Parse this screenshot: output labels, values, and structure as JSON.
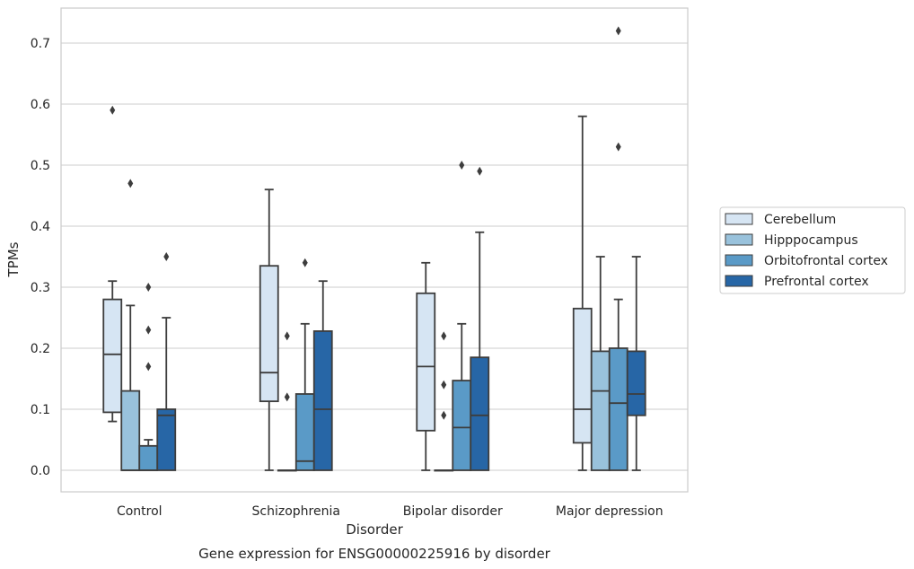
{
  "chart_data": {
    "type": "boxplot",
    "title": "",
    "caption": "Gene expression for ENSG00000225916 by disorder",
    "xlabel": "Disorder",
    "ylabel": "TPMs",
    "ylim": [
      -0.035,
      0.76
    ],
    "yticks": [
      0.0,
      0.1,
      0.2,
      0.3,
      0.4,
      0.5,
      0.6,
      0.7
    ],
    "ytick_labels": [
      "0.0",
      "0.1",
      "0.2",
      "0.3",
      "0.4",
      "0.5",
      "0.6",
      "0.7"
    ],
    "categories": [
      "Control",
      "Schizophrenia",
      "Bipolar disorder",
      "Major depression"
    ],
    "grid": "horizontal",
    "legend_position": "right",
    "series": [
      {
        "name": "Cerebellum",
        "color": "#d6e5f3",
        "boxes": [
          {
            "whislo": 0.08,
            "q1": 0.095,
            "med": 0.19,
            "q3": 0.28,
            "whishi": 0.31,
            "fliers": [
              0.59
            ]
          },
          {
            "whislo": 0.0,
            "q1": 0.113,
            "med": 0.16,
            "q3": 0.335,
            "whishi": 0.46,
            "fliers": []
          },
          {
            "whislo": 0.0,
            "q1": 0.065,
            "med": 0.17,
            "q3": 0.29,
            "whishi": 0.34,
            "fliers": []
          },
          {
            "whislo": 0.0,
            "q1": 0.045,
            "med": 0.1,
            "q3": 0.265,
            "whishi": 0.58,
            "fliers": []
          }
        ]
      },
      {
        "name": "Hipppocampus",
        "color": "#99c2dc",
        "boxes": [
          {
            "whislo": 0.0,
            "q1": 0.0,
            "med": 0.0,
            "q3": 0.13,
            "whishi": 0.27,
            "fliers": [
              0.47
            ]
          },
          {
            "whislo": 0.0,
            "q1": 0.0,
            "med": 0.0,
            "q3": 0.0,
            "whishi": 0.0,
            "fliers": [
              0.12,
              0.22
            ]
          },
          {
            "whislo": 0.0,
            "q1": 0.0,
            "med": 0.0,
            "q3": 0.0,
            "whishi": 0.0,
            "fliers": [
              0.09,
              0.14,
              0.22
            ]
          },
          {
            "whislo": 0.0,
            "q1": 0.0,
            "med": 0.13,
            "q3": 0.195,
            "whishi": 0.35,
            "fliers": []
          }
        ]
      },
      {
        "name": "Orbitofrontal cortex",
        "color": "#5a9ac7",
        "boxes": [
          {
            "whislo": 0.0,
            "q1": 0.0,
            "med": 0.0,
            "q3": 0.04,
            "whishi": 0.05,
            "fliers": [
              0.17,
              0.23,
              0.3
            ]
          },
          {
            "whislo": 0.0,
            "q1": 0.0,
            "med": 0.015,
            "q3": 0.125,
            "whishi": 0.24,
            "fliers": [
              0.34
            ]
          },
          {
            "whislo": 0.0,
            "q1": 0.0,
            "med": 0.07,
            "q3": 0.147,
            "whishi": 0.24,
            "fliers": [
              0.5
            ]
          },
          {
            "whislo": 0.0,
            "q1": 0.0,
            "med": 0.11,
            "q3": 0.2,
            "whishi": 0.28,
            "fliers": [
              0.53,
              0.72
            ]
          }
        ]
      },
      {
        "name": "Prefrontal cortex",
        "color": "#2766a6",
        "boxes": [
          {
            "whislo": 0.0,
            "q1": 0.0,
            "med": 0.09,
            "q3": 0.1,
            "whishi": 0.25,
            "fliers": [
              0.35
            ]
          },
          {
            "whislo": 0.0,
            "q1": 0.0,
            "med": 0.1,
            "q3": 0.228,
            "whishi": 0.31,
            "fliers": []
          },
          {
            "whislo": 0.0,
            "q1": 0.0,
            "med": 0.09,
            "q3": 0.185,
            "whishi": 0.39,
            "fliers": [
              0.49
            ]
          },
          {
            "whislo": 0.0,
            "q1": 0.09,
            "med": 0.125,
            "q3": 0.195,
            "whishi": 0.35,
            "fliers": []
          }
        ]
      }
    ]
  }
}
